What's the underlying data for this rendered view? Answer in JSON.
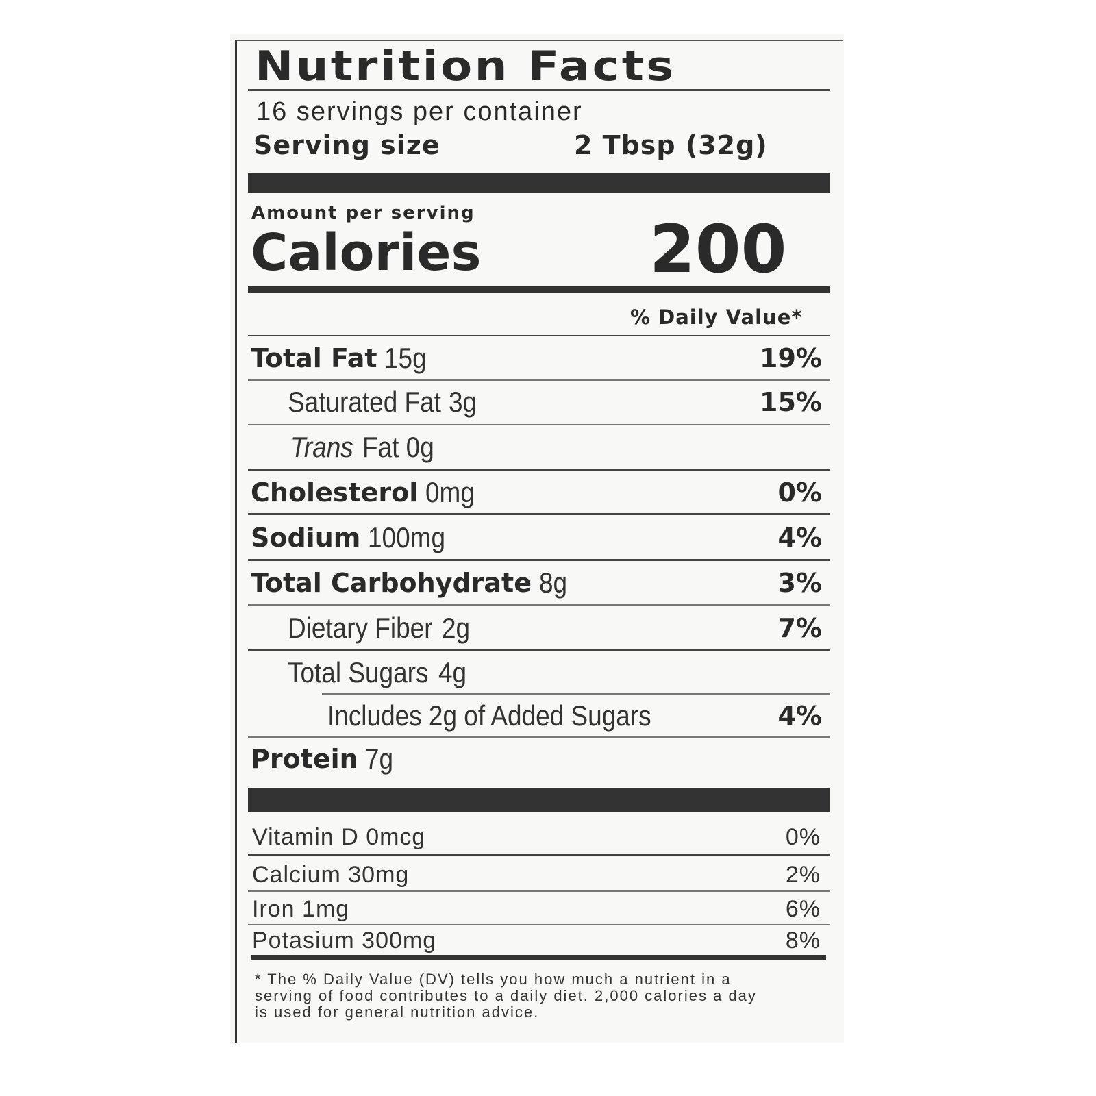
{
  "title": "Nutrition Facts",
  "servings_per_container": "16 servings per container",
  "serving_size_label": "Serving size",
  "serving_size_value": "2 Tbsp (32g)",
  "amount_per_serving": "Amount per serving",
  "calories_label": "Calories",
  "calories_value": "200",
  "daily_value_header": "% Daily Value*",
  "nutrients": [
    {
      "name": "Total Fat",
      "amount": "15g",
      "dv": "19%"
    },
    {
      "name": "Saturated Fat",
      "amount": "3g",
      "dv": "15%"
    },
    {
      "name": "Trans",
      "amount": "Fat 0g",
      "dv": ""
    },
    {
      "name": "Cholesterol",
      "amount": "0mg",
      "dv": "0%"
    },
    {
      "name": "Sodium",
      "amount": "100mg",
      "dv": "4%"
    },
    {
      "name": "Total Carbohydrate",
      "amount": "8g",
      "dv": "3%"
    },
    {
      "name": "Dietary Fiber",
      "amount": "2g",
      "dv": "7%"
    },
    {
      "name": "Total Sugars",
      "amount": "4g",
      "dv": ""
    },
    {
      "name": "Includes 2g of Added Sugars",
      "amount": "",
      "dv": "4%"
    },
    {
      "name": "Protein",
      "amount": "7g",
      "dv": ""
    }
  ],
  "vitamins": [
    {
      "name": "Vitamin D 0mcg",
      "dv": "0%"
    },
    {
      "name": "Calcium 30mg",
      "dv": "2%"
    },
    {
      "name": "Iron 1mg",
      "dv": "6%"
    },
    {
      "name": "Potasium 300mg",
      "dv": "8%"
    }
  ],
  "footnote": "* The % Daily Value (DV) tells you how much a nutrient in a serving of food contributes to a daily diet. 2,000 calories a day is used for general nutrition advice."
}
